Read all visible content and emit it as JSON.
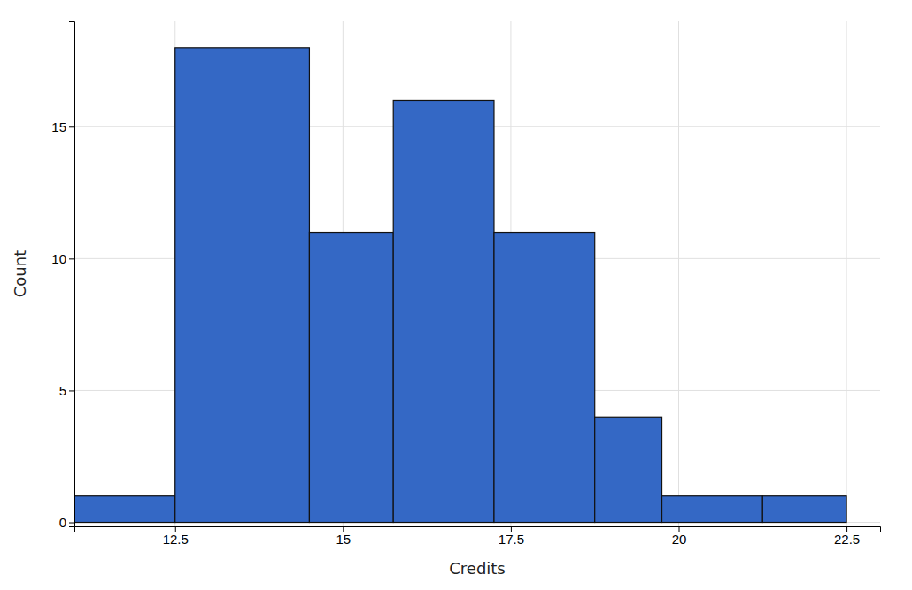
{
  "chart_data": {
    "type": "histogram",
    "x_label": "Credits",
    "y_label": "Count",
    "bins": [
      11,
      12.5,
      14.5,
      15.75,
      17.25,
      18.75,
      19.75,
      21.25,
      22.5
    ],
    "values": [
      1,
      18,
      11,
      16,
      11,
      4,
      1,
      1
    ],
    "color": "#3468C5",
    "xlim": [
      11,
      23
    ],
    "ylim": [
      -0.15,
      19
    ],
    "xticks": [
      12.5,
      15,
      17.5,
      20,
      22.5
    ],
    "yticks": [
      0,
      5,
      10,
      15
    ],
    "grid": true
  }
}
